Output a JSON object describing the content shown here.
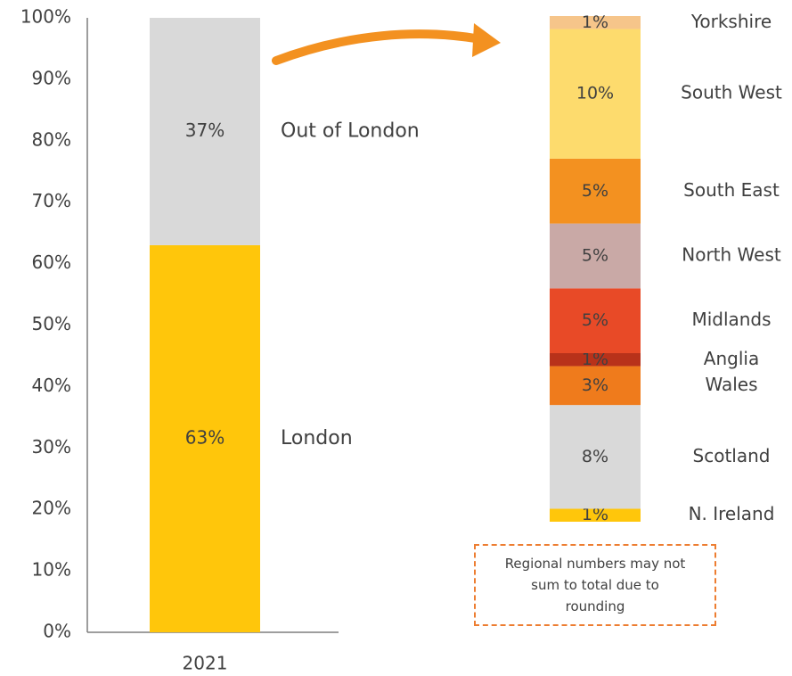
{
  "chart_data": [
    {
      "type": "stacked-bar",
      "categories": [
        "2021"
      ],
      "series": [
        {
          "name": "London",
          "color": "#ffc60b",
          "values": [
            63
          ],
          "value_labels": [
            "63%"
          ]
        },
        {
          "name": "Out of London",
          "color": "#d9d9d9",
          "values": [
            37
          ],
          "value_labels": [
            "37%"
          ]
        }
      ],
      "ylim": [
        0,
        100
      ],
      "yticks": [
        {
          "value": 0,
          "label": "0%"
        },
        {
          "value": 10,
          "label": "10%"
        },
        {
          "value": 20,
          "label": "20%"
        },
        {
          "value": 30,
          "label": "30%"
        },
        {
          "value": 40,
          "label": "40%"
        },
        {
          "value": 50,
          "label": "50%"
        },
        {
          "value": 60,
          "label": "60%"
        },
        {
          "value": 70,
          "label": "70%"
        },
        {
          "value": 80,
          "label": "80%"
        },
        {
          "value": 90,
          "label": "90%"
        },
        {
          "value": 100,
          "label": "100%"
        }
      ],
      "grid": false
    },
    {
      "type": "breakdown-bar",
      "series": [
        {
          "name": "N. Ireland",
          "color": "#ffc60b",
          "values": [
            1
          ],
          "value_labels": [
            "1%"
          ]
        },
        {
          "name": "Scotland",
          "color": "#d9d9d9",
          "values": [
            8
          ],
          "value_labels": [
            "8%"
          ]
        },
        {
          "name": "Wales",
          "color": "#ef7b1c",
          "values": [
            3
          ],
          "value_labels": [
            "3%"
          ]
        },
        {
          "name": "Anglia",
          "color": "#b8321a",
          "values": [
            1
          ],
          "value_labels": [
            "1%"
          ]
        },
        {
          "name": "Midlands",
          "color": "#e84a27",
          "values": [
            5
          ],
          "value_labels": [
            "5%"
          ]
        },
        {
          "name": "North West",
          "color": "#c9a9a6",
          "values": [
            5
          ],
          "value_labels": [
            "5%"
          ]
        },
        {
          "name": "South East",
          "color": "#f39120",
          "values": [
            5
          ],
          "value_labels": [
            "5%"
          ]
        },
        {
          "name": "South West",
          "color": "#fddb6d",
          "values": [
            10
          ],
          "value_labels": [
            "10%"
          ]
        },
        {
          "name": "Yorkshire",
          "color": "#f6c58a",
          "values": [
            1
          ],
          "value_labels": [
            "1%"
          ]
        }
      ],
      "annotation": "Regional  numbers may not sum to total due to rounding"
    }
  ]
}
